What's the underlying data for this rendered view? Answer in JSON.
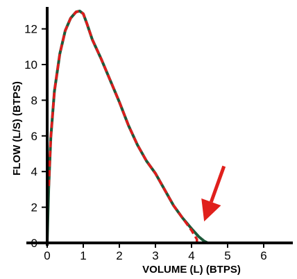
{
  "chart_data": {
    "type": "line",
    "xlabel": "VOLUME (L) (BTPS)",
    "ylabel": "FLOW (L/S) (BTPS)",
    "xlim": [
      0,
      6.5
    ],
    "ylim": [
      0,
      14
    ],
    "x_ticks": [
      0,
      1,
      2,
      3,
      4,
      5,
      6
    ],
    "y_ticks": [
      0,
      2,
      4,
      6,
      8,
      10,
      12
    ],
    "grid": false,
    "legend": "none",
    "colors": {
      "series_a": "#1e5a3a",
      "series_b": "#e01b1b",
      "arrow": "#e0201c",
      "axis": "#000000"
    },
    "series": [
      {
        "style": "solid",
        "x": [
          0.0,
          0.04,
          0.1,
          0.2,
          0.35,
          0.5,
          0.65,
          0.8,
          0.9,
          1.0,
          1.1,
          1.25,
          1.5,
          1.75,
          2.0,
          2.25,
          2.5,
          2.75,
          3.0,
          3.25,
          3.5,
          3.75,
          4.0,
          4.2,
          4.35,
          4.45
        ],
        "y": [
          0.0,
          3.0,
          5.9,
          8.5,
          10.6,
          11.9,
          12.6,
          12.95,
          13.0,
          12.85,
          12.3,
          11.4,
          10.3,
          9.1,
          7.9,
          6.6,
          5.5,
          4.6,
          3.9,
          3.0,
          2.1,
          1.4,
          0.8,
          0.35,
          0.1,
          0.0
        ]
      },
      {
        "style": "dashed",
        "x": [
          0.0,
          0.0,
          0.04,
          0.1,
          0.2,
          0.35,
          0.5,
          0.65,
          0.8,
          0.9,
          1.0,
          1.1,
          1.25,
          1.5,
          1.75,
          2.0,
          2.25,
          2.5,
          2.75,
          3.0,
          3.25,
          3.5,
          3.75,
          4.0,
          4.15,
          4.15
        ],
        "y": [
          0.0,
          3.0,
          3.0,
          5.9,
          8.5,
          10.6,
          11.9,
          12.6,
          12.95,
          13.0,
          12.85,
          12.3,
          11.4,
          10.3,
          9.1,
          7.9,
          6.6,
          5.5,
          4.6,
          3.9,
          3.0,
          2.1,
          1.4,
          0.7,
          0.2,
          0.0
        ]
      }
    ],
    "annotations": [
      {
        "type": "arrow",
        "from": [
          4.9,
          4.3
        ],
        "to": [
          4.35,
          1.2
        ]
      }
    ]
  }
}
